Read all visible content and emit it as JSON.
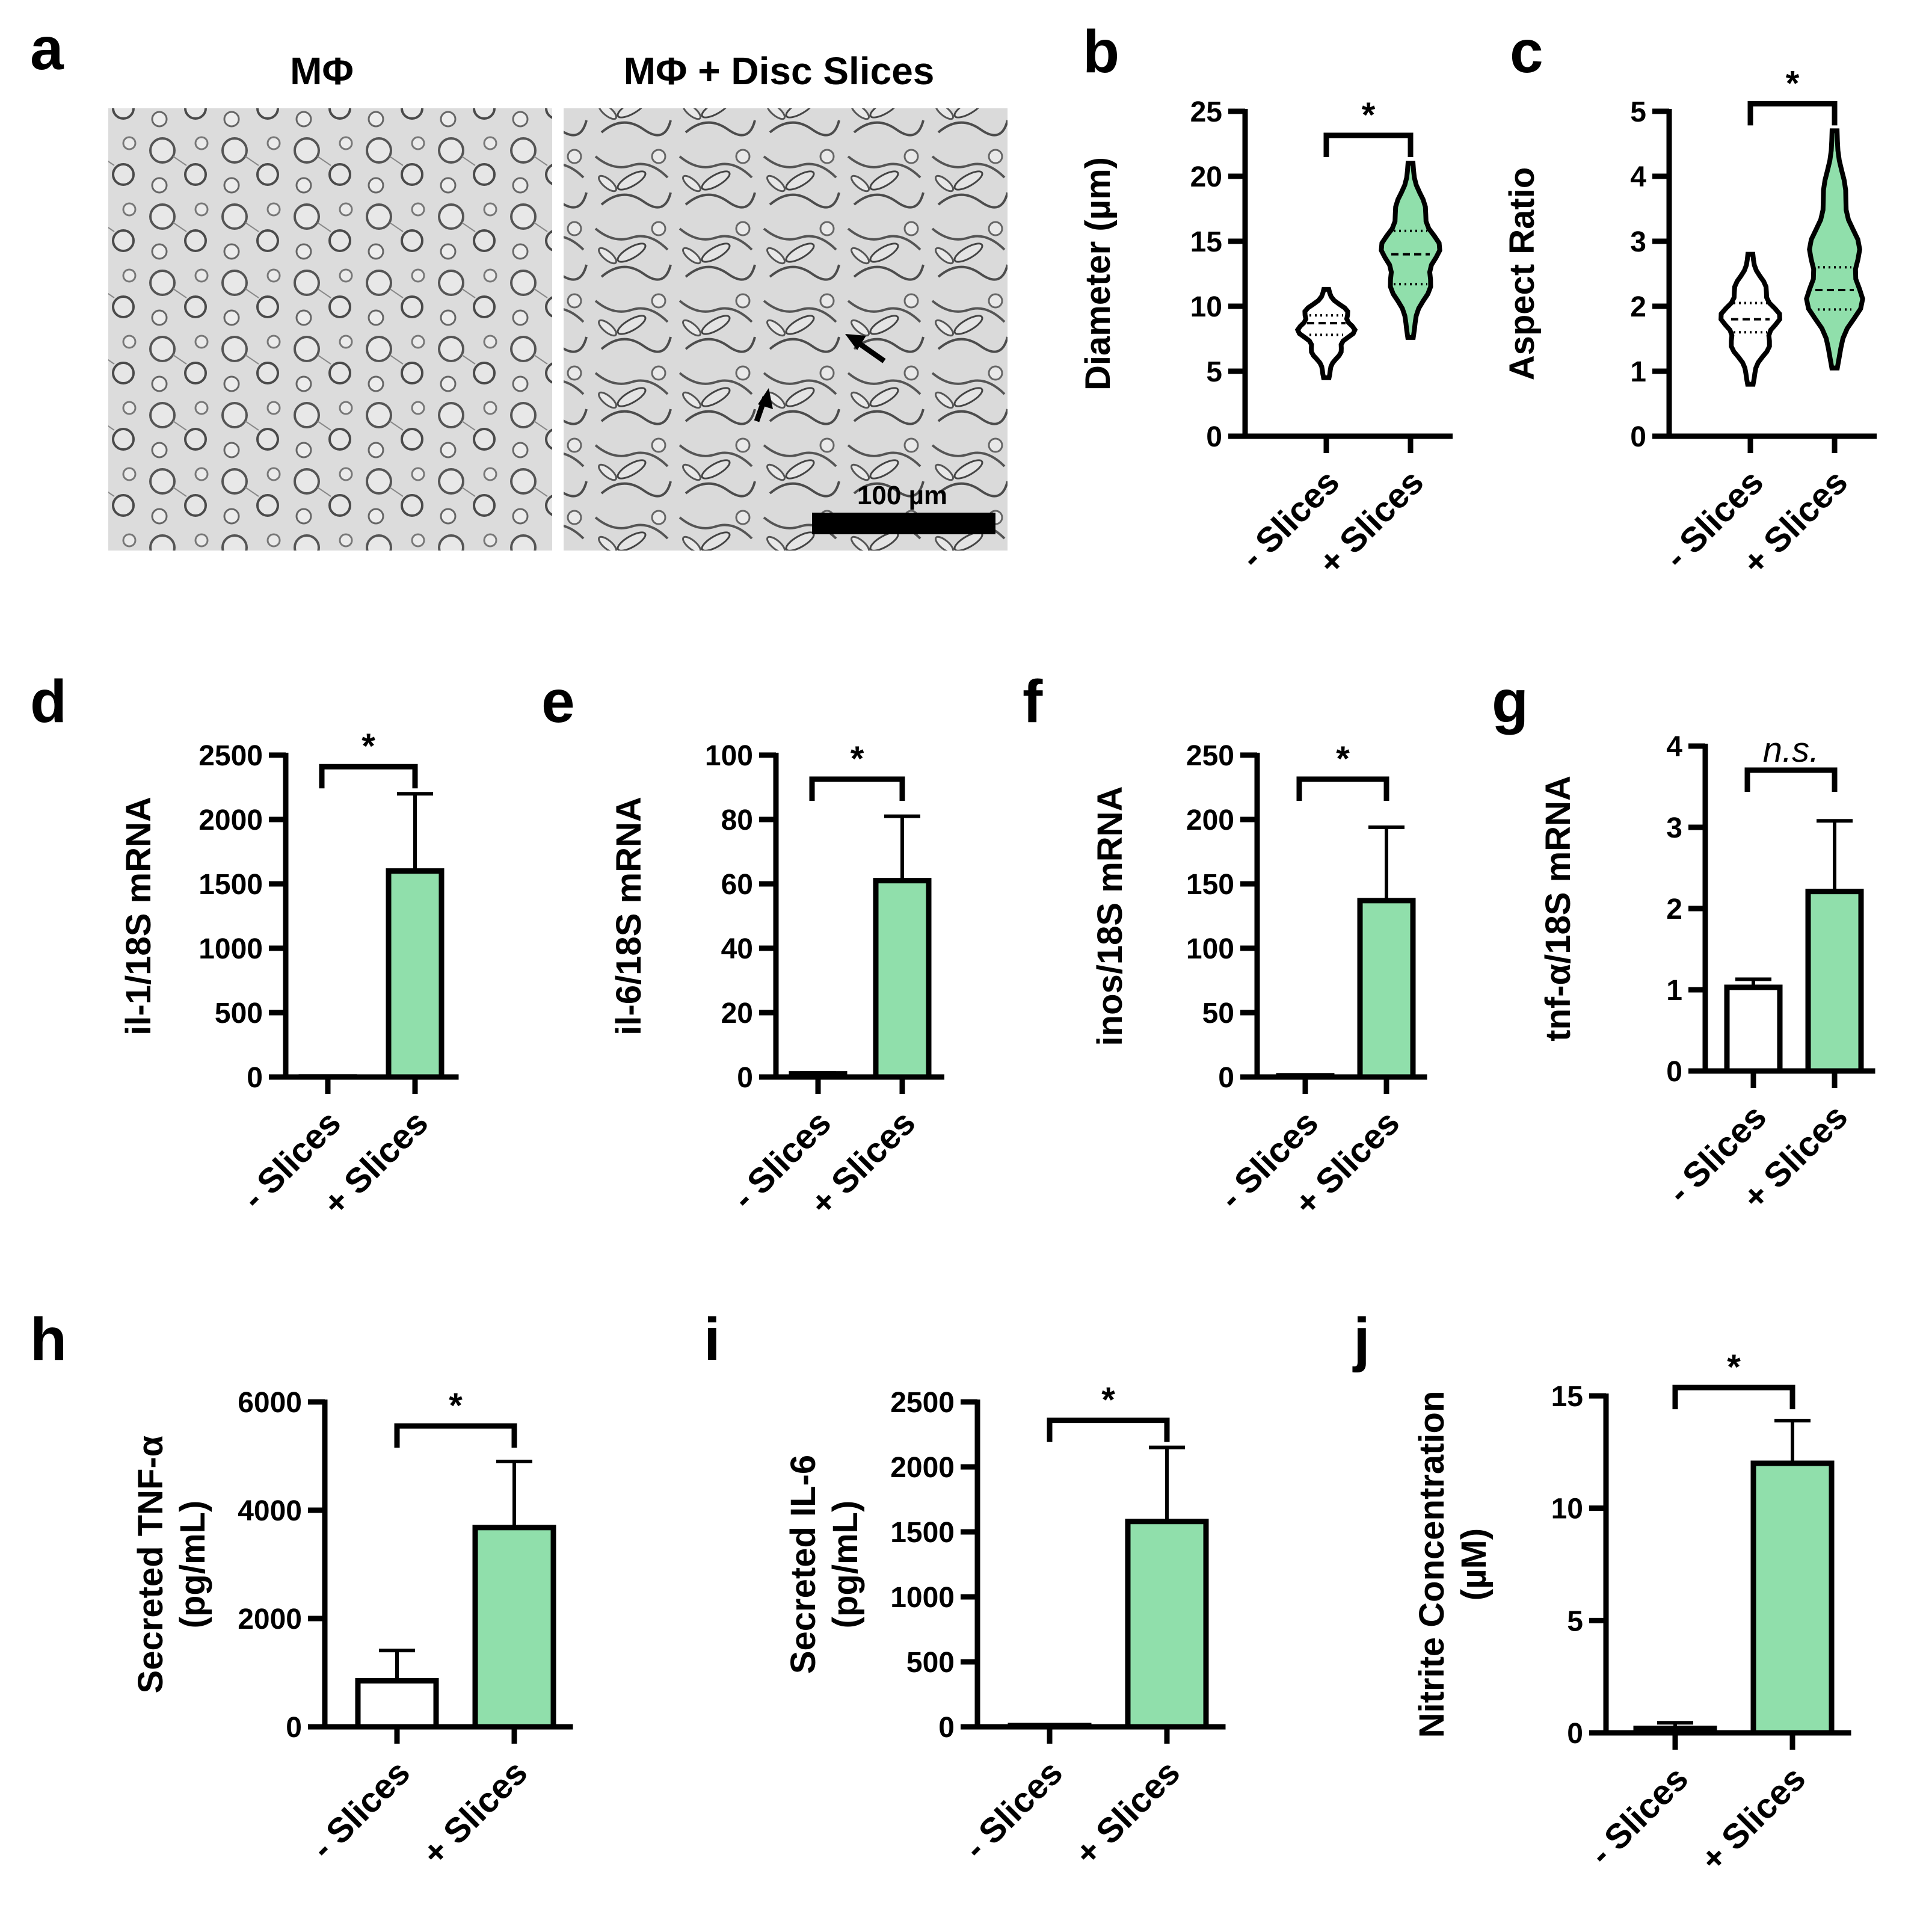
{
  "figure": {
    "panel_a": {
      "label": "a",
      "image_left": {
        "title": "MΦ",
        "description": "micrograph-rounded-macrophages"
      },
      "image_right": {
        "title": "MΦ + Disc Slices",
        "description": "micrograph-elongated-macrophages"
      },
      "scale_bar": "100 µm"
    }
  },
  "colors": {
    "treated": "#90dfab",
    "control": "#ffffff",
    "stroke": "#000000"
  },
  "chart_data": [
    {
      "id": "b",
      "label": "b",
      "type": "violin",
      "categories": [
        "- Slices",
        "+ Slices"
      ],
      "ylabel": "Diameter (µm)",
      "ylim": [
        0,
        25
      ],
      "yticks": [
        0,
        5,
        10,
        15,
        20,
        25
      ],
      "violin_range": [
        [
          4.5,
          11.3
        ],
        [
          7.6,
          21
        ]
      ],
      "median": [
        8.7,
        14
      ],
      "quartiles": [
        [
          7.8,
          9.3
        ],
        [
          11.7,
          15.8
        ]
      ],
      "significance": "*"
    },
    {
      "id": "c",
      "label": "c",
      "type": "violin",
      "categories": [
        "- Slices",
        "+ Slices"
      ],
      "ylabel": "Aspect Ratio",
      "ylim": [
        0,
        5
      ],
      "yticks": [
        0,
        1,
        2,
        3,
        4,
        5
      ],
      "violin_range": [
        [
          0.8,
          2.8
        ],
        [
          1.05,
          4.7
        ]
      ],
      "median": [
        1.8,
        2.25
      ],
      "quartiles": [
        [
          1.6,
          2.05
        ],
        [
          1.95,
          2.6
        ]
      ],
      "significance": "*"
    },
    {
      "id": "d",
      "label": "d",
      "type": "bar",
      "categories": [
        "- Slices",
        "+ Slices"
      ],
      "values": [
        1,
        1600
      ],
      "errors": [
        0,
        600
      ],
      "ylabel": "il-1/18S mRNA",
      "ylim": [
        0,
        2500
      ],
      "yticks": [
        0,
        500,
        1000,
        1500,
        2000,
        2500
      ],
      "significance": "*"
    },
    {
      "id": "e",
      "label": "e",
      "type": "bar",
      "categories": [
        "- Slices",
        "+ Slices"
      ],
      "values": [
        1,
        61
      ],
      "errors": [
        0.3,
        20
      ],
      "ylabel": "il-6/18S mRNA",
      "ylim": [
        0,
        100
      ],
      "yticks": [
        0,
        20,
        40,
        60,
        80,
        100
      ],
      "significance": "*"
    },
    {
      "id": "f",
      "label": "f",
      "type": "bar",
      "categories": [
        "- Slices",
        "+ Slices"
      ],
      "values": [
        1,
        137
      ],
      "errors": [
        0.3,
        57
      ],
      "ylabel": "inos/18S mRNA",
      "ylim": [
        0,
        250
      ],
      "yticks": [
        0,
        50,
        100,
        150,
        200,
        250
      ],
      "significance": "*"
    },
    {
      "id": "g",
      "label": "g",
      "type": "bar",
      "categories": [
        "- Slices",
        "+ Slices"
      ],
      "values": [
        1.03,
        2.21
      ],
      "errors": [
        0.1,
        0.87
      ],
      "ylabel": "tnf-α/18S mRNA",
      "ylim": [
        0,
        4
      ],
      "yticks": [
        0,
        1,
        2,
        3,
        4
      ],
      "significance": "n.s."
    },
    {
      "id": "h",
      "label": "h",
      "type": "bar",
      "categories": [
        "- Slices",
        "+ Slices"
      ],
      "values": [
        850,
        3680
      ],
      "errors": [
        560,
        1220
      ],
      "ylabel": "Secreted TNF-α",
      "ylabel2": "(pg/mL)",
      "ylim": [
        0,
        6000
      ],
      "yticks": [
        0,
        2000,
        4000,
        6000
      ],
      "significance": "*"
    },
    {
      "id": "i",
      "label": "i",
      "type": "bar",
      "categories": [
        "- Slices",
        "+ Slices"
      ],
      "values": [
        10,
        1580
      ],
      "errors": [
        5,
        570
      ],
      "ylabel": "Secreted IL-6",
      "ylabel2": "(pg/mL)",
      "ylim": [
        0,
        2500
      ],
      "yticks": [
        0,
        500,
        1000,
        1500,
        2000,
        2500
      ],
      "significance": "*"
    },
    {
      "id": "j",
      "label": "j",
      "type": "bar",
      "categories": [
        "- Slices",
        "+ Slices"
      ],
      "values": [
        0.2,
        12
      ],
      "errors": [
        0.25,
        1.9
      ],
      "ylabel": "Nitrite Concentration",
      "ylabel2": "(µM)",
      "ylim": [
        0,
        15
      ],
      "yticks": [
        0,
        5,
        10,
        15
      ],
      "significance": "*"
    }
  ]
}
